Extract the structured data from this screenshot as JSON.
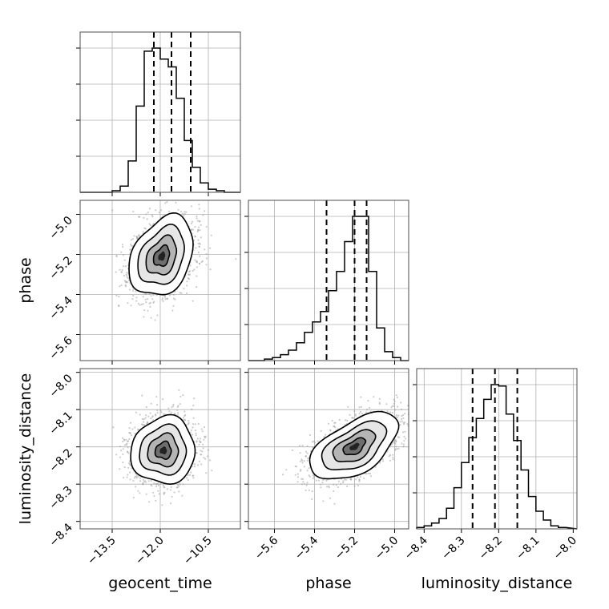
{
  "chart_data": {
    "type": "corner",
    "parameters": [
      "geocent_time",
      "phase",
      "luminosity_distance"
    ],
    "grid": true,
    "axes": {
      "geocent_time": {
        "range": [
          -14.5,
          -9.5
        ],
        "ticks": [
          -13.5,
          -12.0,
          -10.5
        ],
        "tick_labels": [
          "−13.5",
          "−12.0",
          "−10.5"
        ]
      },
      "phase": {
        "range": [
          -5.73,
          -4.93
        ],
        "ticks": [
          -5.6,
          -5.4,
          -5.2,
          -5.0
        ],
        "tick_labels": [
          "−5.6",
          "−5.4",
          "−5.2",
          "−5.0"
        ]
      },
      "luminosity_distance": {
        "range": [
          -8.42,
          -7.99
        ],
        "ticks": [
          -8.4,
          -8.3,
          -8.2,
          -8.1,
          -8.0
        ],
        "tick_labels": [
          "−8.4",
          "−8.3",
          "−8.2",
          "−8.1",
          "−8.0"
        ]
      }
    },
    "histograms": {
      "geocent_time": {
        "bin_edges": [
          -14.5,
          -14.25,
          -14.0,
          -13.75,
          -13.5,
          -13.25,
          -13.0,
          -12.75,
          -12.5,
          -12.25,
          -12.0,
          -11.75,
          -11.5,
          -11.25,
          -11.0,
          -10.75,
          -10.5,
          -10.25,
          -10.0,
          -9.75,
          -9.5
        ],
        "counts": [
          0,
          0,
          0,
          0,
          0.01,
          0.04,
          0.2,
          0.55,
          0.9,
          0.92,
          0.85,
          0.8,
          0.6,
          0.33,
          0.16,
          0.06,
          0.02,
          0.01,
          0,
          0
        ],
        "quantiles": [
          -12.2,
          -11.65,
          -11.05
        ]
      },
      "phase": {
        "bin_edges": [
          -5.73,
          -5.69,
          -5.65,
          -5.61,
          -5.57,
          -5.53,
          -5.49,
          -5.45,
          -5.41,
          -5.37,
          -5.33,
          -5.29,
          -5.25,
          -5.21,
          -5.17,
          -5.13,
          -5.09,
          -5.05,
          -5.01,
          -4.97,
          -4.93
        ],
        "counts": [
          0,
          0,
          0.01,
          0.02,
          0.04,
          0.07,
          0.12,
          0.19,
          0.26,
          0.33,
          0.47,
          0.6,
          0.8,
          0.97,
          0.97,
          0.6,
          0.22,
          0.06,
          0.02,
          0
        ],
        "quantiles": [
          -5.34,
          -5.2,
          -5.14
        ]
      },
      "luminosity_distance": {
        "bin_edges": [
          -8.42,
          -8.4,
          -8.38,
          -8.36,
          -8.34,
          -8.32,
          -8.3,
          -8.28,
          -8.26,
          -8.24,
          -8.22,
          -8.2,
          -8.18,
          -8.16,
          -8.14,
          -8.12,
          -8.1,
          -8.08,
          -8.06,
          -8.04,
          -8.02
        ],
        "counts": [
          0.01,
          0.02,
          0.04,
          0.07,
          0.14,
          0.28,
          0.45,
          0.62,
          0.75,
          0.88,
          0.98,
          0.97,
          0.78,
          0.6,
          0.4,
          0.22,
          0.12,
          0.06,
          0.02,
          0.01
        ],
        "quantiles": [
          -8.27,
          -8.21,
          -8.15
        ]
      }
    },
    "joint": {
      "phase_vs_geocent_time": {
        "x": "geocent_time",
        "y": "phase",
        "mean": [
          -11.95,
          -5.21
        ],
        "sd": [
          0.5,
          0.1
        ],
        "rho": 0.3
      },
      "luminosity_distance_vs_geocent_time": {
        "x": "geocent_time",
        "y": "luminosity_distance",
        "mean": [
          -11.9,
          -8.21
        ],
        "sd": [
          0.5,
          0.045
        ],
        "rho": 0.05
      },
      "luminosity_distance_vs_phase": {
        "x": "phase",
        "y": "luminosity_distance",
        "mean": [
          -5.2,
          -8.2
        ],
        "sd": [
          0.11,
          0.045
        ],
        "rho": 0.55
      }
    }
  }
}
